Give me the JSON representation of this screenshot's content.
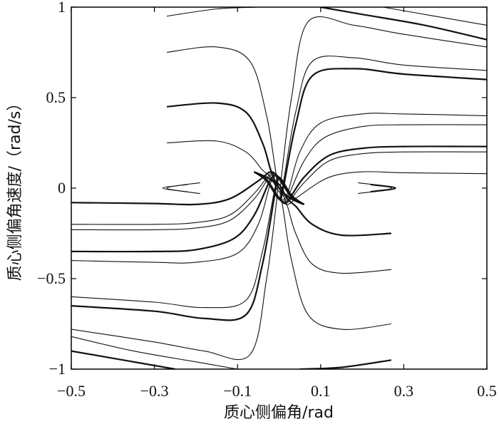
{
  "chart_data": {
    "type": "line",
    "title": "",
    "xlabel": "质心侧偏角/rad",
    "ylabel": "质心侧偏角速度/（rad/s）",
    "xlim": [
      -0.5,
      0.5
    ],
    "ylim": [
      -1,
      1
    ],
    "xticks": [
      -0.5,
      -0.3,
      -0.1,
      0.1,
      0.3,
      0.5
    ],
    "xtick_labels": [
      "−0.5",
      "−0.3",
      "−0.1",
      "0.1",
      "0.3",
      "0.5"
    ],
    "yticks": [
      -1,
      -0.5,
      0,
      0.5,
      1
    ],
    "ytick_labels": [
      "−1",
      "−0.5",
      "0",
      "0.5",
      "1"
    ],
    "grid": false,
    "legend": "none",
    "line_color": "#111111",
    "series": [
      {
        "values": [
          [
            -0.5,
            -0.08
          ],
          [
            -0.3,
            -0.085
          ],
          [
            -0.2,
            -0.09
          ],
          [
            -0.12,
            -0.06
          ],
          [
            -0.05,
            0.04
          ],
          [
            -0.02,
            0.09
          ],
          [
            0.0,
            0.05
          ],
          [
            0.03,
            -0.05
          ],
          [
            0.06,
            -0.09
          ]
        ]
      },
      {
        "values": [
          [
            -0.5,
            -0.2
          ],
          [
            -0.3,
            -0.2
          ],
          [
            -0.2,
            -0.19
          ],
          [
            -0.12,
            -0.15
          ],
          [
            -0.06,
            -0.03
          ],
          [
            -0.02,
            0.08
          ],
          [
            0.0,
            0.06
          ],
          [
            0.03,
            -0.04
          ],
          [
            0.06,
            -0.09
          ]
        ]
      },
      {
        "values": [
          [
            -0.5,
            -0.23
          ],
          [
            -0.3,
            -0.23
          ],
          [
            -0.2,
            -0.22
          ],
          [
            -0.12,
            -0.18
          ],
          [
            -0.06,
            -0.06
          ],
          [
            -0.02,
            0.07
          ],
          [
            0.0,
            0.06
          ],
          [
            0.03,
            -0.04
          ],
          [
            0.06,
            -0.09
          ]
        ]
      },
      {
        "values": [
          [
            -0.5,
            -0.35
          ],
          [
            -0.3,
            -0.35
          ],
          [
            -0.2,
            -0.34
          ],
          [
            -0.11,
            -0.28
          ],
          [
            -0.06,
            -0.15
          ],
          [
            -0.02,
            0.05
          ],
          [
            0.0,
            0.06
          ],
          [
            0.03,
            -0.04
          ],
          [
            0.06,
            -0.09
          ]
        ]
      },
      {
        "values": [
          [
            -0.5,
            -0.4
          ],
          [
            -0.3,
            -0.41
          ],
          [
            -0.2,
            -0.41
          ],
          [
            -0.1,
            -0.36
          ],
          [
            -0.05,
            -0.2
          ],
          [
            -0.02,
            0.03
          ],
          [
            0.0,
            0.06
          ],
          [
            0.03,
            -0.04
          ],
          [
            0.06,
            -0.09
          ]
        ]
      },
      {
        "values": [
          [
            -0.5,
            -0.6
          ],
          [
            -0.3,
            -0.63
          ],
          [
            -0.18,
            -0.66
          ],
          [
            -0.08,
            -0.62
          ],
          [
            -0.04,
            -0.35
          ],
          [
            -0.01,
            0.0
          ],
          [
            0.0,
            0.06
          ],
          [
            0.03,
            -0.04
          ],
          [
            0.06,
            -0.09
          ]
        ]
      },
      {
        "values": [
          [
            -0.5,
            -0.65
          ],
          [
            -0.3,
            -0.68
          ],
          [
            -0.18,
            -0.72
          ],
          [
            -0.08,
            -0.7
          ],
          [
            -0.04,
            -0.42
          ],
          [
            -0.01,
            -0.03
          ],
          [
            0.0,
            0.06
          ],
          [
            0.03,
            -0.04
          ],
          [
            0.06,
            -0.09
          ]
        ]
      },
      {
        "values": [
          [
            -0.5,
            -0.78
          ],
          [
            -0.3,
            -0.85
          ],
          [
            -0.18,
            -0.9
          ],
          [
            -0.07,
            -0.92
          ],
          [
            -0.03,
            -0.5
          ],
          [
            -0.005,
            -0.05
          ],
          [
            0.0,
            0.06
          ],
          [
            0.03,
            -0.04
          ],
          [
            0.06,
            -0.09
          ]
        ]
      },
      {
        "values": [
          [
            -0.5,
            -0.82
          ],
          [
            -0.35,
            -0.9
          ],
          [
            -0.2,
            -0.96
          ],
          [
            -0.1,
            -1.0
          ]
        ]
      },
      {
        "values": [
          [
            -0.5,
            -0.9
          ],
          [
            -0.35,
            -0.96
          ],
          [
            -0.25,
            -1.0
          ]
        ]
      },
      {
        "values": [
          [
            0.5,
            0.08
          ],
          [
            0.3,
            0.085
          ],
          [
            0.2,
            0.09
          ],
          [
            0.12,
            0.06
          ],
          [
            0.05,
            -0.04
          ],
          [
            0.02,
            -0.09
          ],
          [
            0.0,
            -0.05
          ],
          [
            -0.03,
            0.05
          ],
          [
            -0.06,
            0.09
          ]
        ]
      },
      {
        "values": [
          [
            0.5,
            0.2
          ],
          [
            0.3,
            0.2
          ],
          [
            0.2,
            0.19
          ],
          [
            0.12,
            0.15
          ],
          [
            0.06,
            0.03
          ],
          [
            0.02,
            -0.08
          ],
          [
            0.0,
            -0.06
          ],
          [
            -0.03,
            0.04
          ],
          [
            -0.06,
            0.09
          ]
        ]
      },
      {
        "values": [
          [
            0.5,
            0.23
          ],
          [
            0.3,
            0.23
          ],
          [
            0.2,
            0.22
          ],
          [
            0.12,
            0.18
          ],
          [
            0.06,
            0.06
          ],
          [
            0.02,
            -0.07
          ],
          [
            0.0,
            -0.06
          ],
          [
            -0.03,
            0.04
          ],
          [
            -0.06,
            0.09
          ]
        ]
      },
      {
        "values": [
          [
            0.5,
            0.35
          ],
          [
            0.3,
            0.35
          ],
          [
            0.2,
            0.34
          ],
          [
            0.11,
            0.28
          ],
          [
            0.06,
            0.15
          ],
          [
            0.02,
            -0.05
          ],
          [
            0.0,
            -0.06
          ],
          [
            -0.03,
            0.04
          ],
          [
            -0.06,
            0.09
          ]
        ]
      },
      {
        "values": [
          [
            0.5,
            0.4
          ],
          [
            0.3,
            0.41
          ],
          [
            0.2,
            0.41
          ],
          [
            0.1,
            0.36
          ],
          [
            0.05,
            0.2
          ],
          [
            0.02,
            -0.03
          ],
          [
            0.0,
            -0.06
          ],
          [
            -0.03,
            0.04
          ],
          [
            -0.06,
            0.09
          ]
        ]
      },
      {
        "values": [
          [
            0.5,
            0.6
          ],
          [
            0.3,
            0.63
          ],
          [
            0.18,
            0.66
          ],
          [
            0.08,
            0.62
          ],
          [
            0.04,
            0.35
          ],
          [
            0.01,
            0.0
          ],
          [
            0.0,
            -0.06
          ],
          [
            -0.03,
            0.04
          ],
          [
            -0.06,
            0.09
          ]
        ]
      },
      {
        "values": [
          [
            0.5,
            0.65
          ],
          [
            0.3,
            0.68
          ],
          [
            0.18,
            0.72
          ],
          [
            0.08,
            0.7
          ],
          [
            0.04,
            0.42
          ],
          [
            0.01,
            0.03
          ],
          [
            0.0,
            -0.06
          ],
          [
            -0.03,
            0.04
          ],
          [
            -0.06,
            0.09
          ]
        ]
      },
      {
        "values": [
          [
            0.5,
            0.78
          ],
          [
            0.3,
            0.85
          ],
          [
            0.18,
            0.9
          ],
          [
            0.07,
            0.92
          ],
          [
            0.03,
            0.5
          ],
          [
            0.005,
            0.05
          ],
          [
            0.0,
            -0.06
          ],
          [
            -0.03,
            0.04
          ],
          [
            -0.06,
            0.09
          ]
        ]
      },
      {
        "values": [
          [
            0.5,
            0.82
          ],
          [
            0.35,
            0.9
          ],
          [
            0.2,
            0.96
          ],
          [
            0.1,
            1.0
          ]
        ]
      },
      {
        "values": [
          [
            0.5,
            0.9
          ],
          [
            0.35,
            0.96
          ],
          [
            0.25,
            1.0
          ]
        ]
      },
      {
        "values": [
          [
            -0.27,
            0.25
          ],
          [
            -0.15,
            0.26
          ],
          [
            -0.08,
            0.2
          ],
          [
            -0.04,
            0.1
          ],
          [
            -0.02,
            0.06
          ],
          [
            0.0,
            -0.02
          ],
          [
            0.03,
            -0.06
          ],
          [
            0.06,
            -0.09
          ]
        ]
      },
      {
        "values": [
          [
            -0.27,
            0.45
          ],
          [
            -0.15,
            0.47
          ],
          [
            -0.08,
            0.42
          ],
          [
            -0.04,
            0.25
          ],
          [
            -0.02,
            0.1
          ],
          [
            0.0,
            0.0
          ],
          [
            0.03,
            -0.06
          ],
          [
            0.06,
            -0.09
          ]
        ]
      },
      {
        "values": [
          [
            -0.27,
            0.75
          ],
          [
            -0.15,
            0.78
          ],
          [
            -0.07,
            0.7
          ],
          [
            -0.03,
            0.4
          ],
          [
            -0.01,
            0.12
          ],
          [
            0.0,
            0.0
          ],
          [
            0.03,
            -0.06
          ],
          [
            0.06,
            -0.09
          ]
        ]
      },
      {
        "values": [
          [
            -0.27,
            0.95
          ],
          [
            -0.15,
            0.99
          ],
          [
            -0.05,
            1.0
          ]
        ]
      },
      {
        "values": [
          [
            0.27,
            -0.25
          ],
          [
            0.15,
            -0.26
          ],
          [
            0.08,
            -0.2
          ],
          [
            0.04,
            -0.1
          ],
          [
            0.02,
            -0.06
          ],
          [
            0.0,
            0.02
          ],
          [
            -0.03,
            0.06
          ],
          [
            -0.06,
            0.09
          ]
        ]
      },
      {
        "values": [
          [
            0.27,
            -0.45
          ],
          [
            0.15,
            -0.47
          ],
          [
            0.08,
            -0.42
          ],
          [
            0.04,
            -0.25
          ],
          [
            0.02,
            -0.1
          ],
          [
            0.0,
            0.0
          ],
          [
            -0.03,
            0.06
          ],
          [
            -0.06,
            0.09
          ]
        ]
      },
      {
        "values": [
          [
            0.27,
            -0.75
          ],
          [
            0.15,
            -0.78
          ],
          [
            0.07,
            -0.7
          ],
          [
            0.03,
            -0.4
          ],
          [
            0.01,
            -0.12
          ],
          [
            0.0,
            0.0
          ],
          [
            -0.03,
            0.06
          ],
          [
            -0.06,
            0.09
          ]
        ]
      },
      {
        "values": [
          [
            0.27,
            -0.95
          ],
          [
            0.15,
            -0.99
          ],
          [
            0.05,
            -1.0
          ]
        ]
      },
      {
        "values": [
          [
            -0.22,
            0.02
          ],
          [
            -0.28,
            0.0
          ],
          [
            -0.22,
            -0.02
          ]
        ]
      },
      {
        "values": [
          [
            -0.19,
            0.03
          ],
          [
            -0.27,
            0.0
          ],
          [
            -0.19,
            -0.03
          ]
        ]
      },
      {
        "values": [
          [
            0.22,
            -0.02
          ],
          [
            0.28,
            0.0
          ],
          [
            0.22,
            0.02
          ]
        ]
      },
      {
        "values": [
          [
            0.19,
            -0.03
          ],
          [
            0.27,
            0.0
          ],
          [
            0.19,
            0.03
          ]
        ]
      }
    ]
  }
}
